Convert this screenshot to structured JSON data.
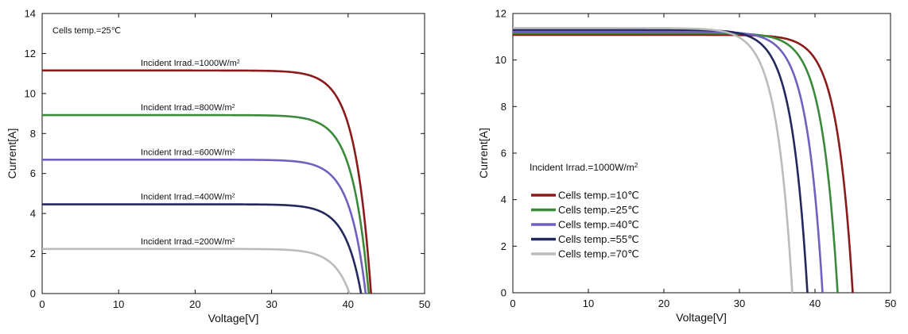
{
  "chart_data": [
    {
      "type": "line",
      "title": "",
      "xlabel": "Voltage[V]",
      "ylabel": "Current[A]",
      "xlim": [
        0,
        50
      ],
      "ylim": [
        0,
        14
      ],
      "xticks": [
        0,
        10,
        20,
        30,
        40,
        50
      ],
      "yticks": [
        0,
        2,
        4,
        6,
        8,
        10,
        12,
        14
      ],
      "grid": false,
      "note": "Cells temp.=25℃",
      "series": [
        {
          "name": "Incident Irrad.=1000W/m²",
          "label": "Incident Irrad.=1000W/m",
          "sup": "2",
          "color": "#8b1a1a",
          "isc": 11.15,
          "voc": 43.0
        },
        {
          "name": "Incident Irrad.=800W/m²",
          "label": "Incident Irrad.=800W/m",
          "sup": "2",
          "color": "#3a8a3a",
          "isc": 8.92,
          "voc": 42.7
        },
        {
          "name": "Incident Irrad.=600W/m²",
          "label": "Incident Irrad.=600W/m",
          "sup": "2",
          "color": "#7060c0",
          "isc": 6.69,
          "voc": 42.3
        },
        {
          "name": "Incident Irrad.=400W/m²",
          "label": "Incident Irrad.=400W/m",
          "sup": "2",
          "color": "#23285e",
          "isc": 4.46,
          "voc": 41.7
        },
        {
          "name": "Incident Irrad.=200W/m²",
          "label": "Incident Irrad.=200W/m",
          "sup": "2",
          "color": "#bbbbbb",
          "isc": 2.23,
          "voc": 40.2
        }
      ]
    },
    {
      "type": "line",
      "title": "",
      "xlabel": "Voltage[V]",
      "ylabel": "Current[A]",
      "xlim": [
        0,
        50
      ],
      "ylim": [
        0,
        12
      ],
      "xticks": [
        0,
        10,
        20,
        30,
        40,
        50
      ],
      "yticks": [
        0,
        2,
        4,
        6,
        8,
        10,
        12
      ],
      "grid": false,
      "note": "Incident Irrad.=1000W/m",
      "note_sup": "2",
      "legend_position": "center-left",
      "series": [
        {
          "name": "Cells temp.=10℃",
          "color": "#8b1a1a",
          "isc": 11.08,
          "voc": 45.0
        },
        {
          "name": "Cells temp.=25℃",
          "color": "#3a8a3a",
          "isc": 11.15,
          "voc": 43.0
        },
        {
          "name": "Cells temp.=40℃",
          "color": "#7060c0",
          "isc": 11.22,
          "voc": 41.0
        },
        {
          "name": "Cells temp.=55℃",
          "color": "#23285e",
          "isc": 11.3,
          "voc": 39.0
        },
        {
          "name": "Cells temp.=70℃",
          "color": "#bbbbbb",
          "isc": 11.37,
          "voc": 37.0
        }
      ]
    }
  ]
}
